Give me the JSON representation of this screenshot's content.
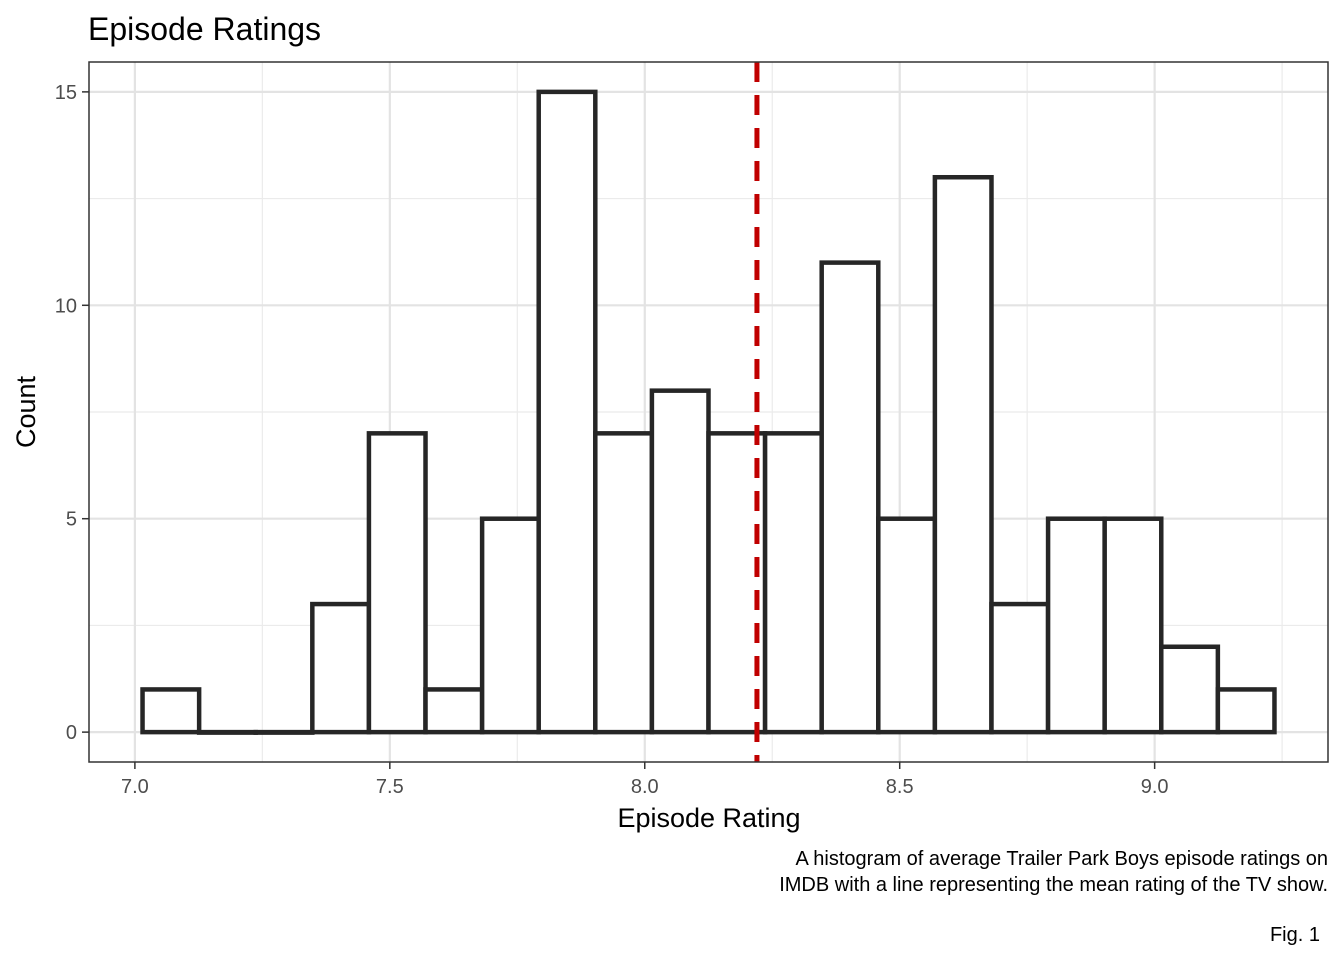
{
  "chart_data": {
    "type": "bar",
    "title": "Episode Ratings",
    "xlabel": "Episode Rating",
    "ylabel": "Count",
    "bin_width": 0.111,
    "bin_starts": [
      7.015,
      7.126,
      7.237,
      7.348,
      7.459,
      7.57,
      7.681,
      7.792,
      7.903,
      8.014,
      8.125,
      8.236,
      8.347,
      8.458,
      8.569,
      8.68,
      8.791,
      8.902,
      9.013,
      9.124
    ],
    "values": [
      1,
      0,
      0,
      3,
      7,
      1,
      5,
      15,
      7,
      8,
      7,
      7,
      11,
      5,
      13,
      3,
      5,
      5,
      2,
      1
    ],
    "mean_line": 8.22,
    "xlim": [
      6.91,
      9.34
    ],
    "ylim": [
      -0.7,
      15.7
    ],
    "x_ticks": [
      "7.0",
      "7.5",
      "8.0",
      "8.5",
      "9.0"
    ],
    "y_ticks": [
      "0",
      "5",
      "10",
      "15"
    ],
    "grid": true,
    "bar_fill": "#ffffff",
    "bar_outline": "#262626",
    "mean_line_color": "#c00000",
    "caption_lines": [
      "A histogram of average Trailer Park Boys episode ratings on",
      "IMDB with a line representing the mean rating of the TV show."
    ],
    "figure_label": "Fig. 1"
  }
}
